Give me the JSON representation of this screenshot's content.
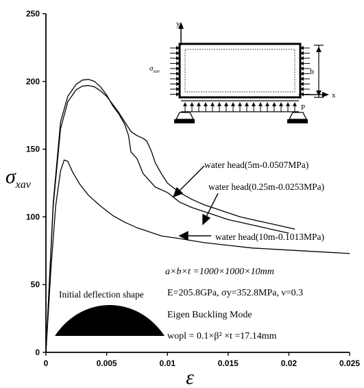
{
  "chart_data": {
    "type": "line",
    "xlabel": "ε",
    "ylabel_main": "σ",
    "ylabel_sub": "xav",
    "xlim": [
      0,
      0.025
    ],
    "ylim": [
      0,
      250
    ],
    "x_ticks": [
      "0",
      "0.005",
      "0.01",
      "0.015",
      "0.02",
      "0.025"
    ],
    "y_ticks": [
      "0",
      "50",
      "100",
      "150",
      "200",
      "250"
    ],
    "grid": false,
    "series": [
      {
        "name": "water head(5m-0.0507MPa)",
        "points": [
          [
            0,
            0
          ],
          [
            0.0006,
            110
          ],
          [
            0.0012,
            170
          ],
          [
            0.0018,
            189
          ],
          [
            0.0025,
            198
          ],
          [
            0.003,
            201
          ],
          [
            0.0035,
            201.5
          ],
          [
            0.004,
            200
          ],
          [
            0.0045,
            196
          ],
          [
            0.005,
            190
          ],
          [
            0.0055,
            182
          ],
          [
            0.006,
            176
          ],
          [
            0.0065,
            168
          ],
          [
            0.0068,
            160
          ],
          [
            0.007,
            148
          ],
          [
            0.0075,
            143
          ],
          [
            0.008,
            132
          ],
          [
            0.009,
            122
          ],
          [
            0.01,
            118
          ],
          [
            0.011,
            111
          ],
          [
            0.012,
            107
          ],
          [
            0.013,
            104
          ],
          [
            0.014,
            101
          ],
          [
            0.015,
            98
          ],
          [
            0.016,
            96
          ],
          [
            0.017,
            94
          ],
          [
            0.018,
            92
          ],
          [
            0.019,
            90
          ],
          [
            0.02,
            88
          ]
        ]
      },
      {
        "name": "water head(0.25m-0.0253MPa)",
        "points": [
          [
            0,
            0
          ],
          [
            0.0006,
            108
          ],
          [
            0.0012,
            165
          ],
          [
            0.0018,
            185
          ],
          [
            0.0025,
            194
          ],
          [
            0.003,
            196.5
          ],
          [
            0.0035,
            197
          ],
          [
            0.004,
            196
          ],
          [
            0.0045,
            193
          ],
          [
            0.005,
            189
          ],
          [
            0.0055,
            183
          ],
          [
            0.006,
            177
          ],
          [
            0.0065,
            170
          ],
          [
            0.007,
            163
          ],
          [
            0.0075,
            160
          ],
          [
            0.008,
            158
          ],
          [
            0.0083,
            156
          ],
          [
            0.0087,
            148
          ],
          [
            0.009,
            140
          ],
          [
            0.0095,
            132
          ],
          [
            0.01,
            125
          ],
          [
            0.011,
            118
          ],
          [
            0.012,
            113
          ],
          [
            0.013,
            109
          ],
          [
            0.014,
            106
          ],
          [
            0.015,
            103
          ],
          [
            0.016,
            100
          ],
          [
            0.017,
            98
          ],
          [
            0.018,
            96
          ],
          [
            0.019,
            94
          ],
          [
            0.02,
            92
          ],
          [
            0.0205,
            91
          ]
        ]
      },
      {
        "name": "water head(10m-0.1013MPa)",
        "points": [
          [
            0,
            0
          ],
          [
            0.0004,
            60
          ],
          [
            0.0008,
            108
          ],
          [
            0.0012,
            134
          ],
          [
            0.0015,
            142
          ],
          [
            0.0018,
            141
          ],
          [
            0.0022,
            133
          ],
          [
            0.0028,
            124
          ],
          [
            0.0035,
            116
          ],
          [
            0.0045,
            108
          ],
          [
            0.0055,
            101
          ],
          [
            0.0065,
            96
          ],
          [
            0.0075,
            92
          ],
          [
            0.0085,
            89
          ],
          [
            0.0095,
            86
          ],
          [
            0.011,
            84
          ],
          [
            0.013,
            81
          ],
          [
            0.015,
            79
          ],
          [
            0.017,
            77
          ],
          [
            0.019,
            76
          ],
          [
            0.021,
            75
          ],
          [
            0.023,
            74
          ],
          [
            0.025,
            73
          ]
        ]
      }
    ]
  },
  "annotations": {
    "label_5m": "water head(5m-0.0507MPa)",
    "label_025m": "water head(0.25m-0.0253MPa)",
    "label_10m": "water head(10m-0.1013MPa)",
    "initial_deflection": "Initial deflection shape",
    "dims": "a×b×t =1000×1000×10mm",
    "material": "E=205.8GPa, σy=352.8MPa, ν=0.3",
    "mode": "Eigen Buckling Mode",
    "wopl": "wopl = 0.1×β² ×t =17.14mm"
  },
  "inset": {
    "y_axis": "y",
    "x_axis": "x",
    "sigma_main": "σ",
    "sigma_sub": "xav",
    "b": "b",
    "p": "P"
  }
}
